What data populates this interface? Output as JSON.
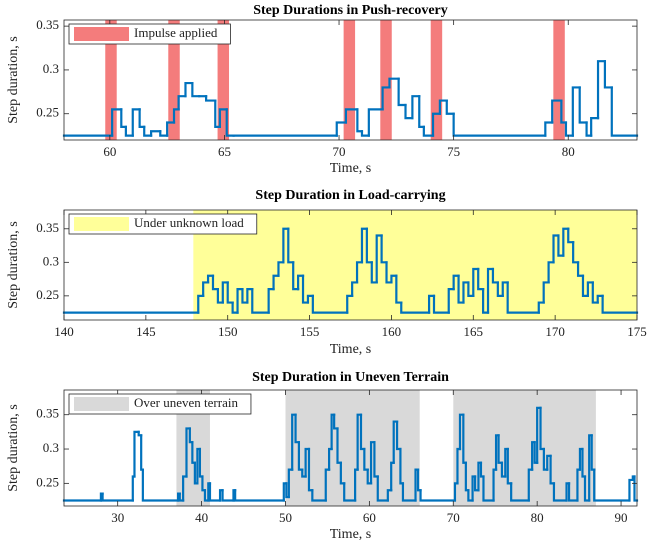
{
  "chart_data": [
    {
      "type": "line",
      "drawstyle": "steps-post",
      "title": "Step Durations in Push-recovery",
      "x_label": "Time, s",
      "y_label": "Step duration, s",
      "xlim": [
        58,
        83
      ],
      "ylim": [
        0.22,
        0.357
      ],
      "xticks": [
        60,
        65,
        70,
        75,
        80
      ],
      "yticks": [
        0.25,
        0.3,
        0.35
      ],
      "grid": false,
      "legend": "upper left",
      "regions": {
        "label": "Impulse applied",
        "color": "#f47c7c",
        "spans": [
          [
            59.8,
            60.3
          ],
          [
            62.55,
            63.05
          ],
          [
            64.7,
            65.2
          ],
          [
            70.2,
            70.7
          ],
          [
            71.8,
            72.3
          ],
          [
            74.0,
            74.5
          ],
          [
            79.35,
            79.85
          ]
        ]
      },
      "series": [
        {
          "color": "#0072bd",
          "x": [
            58,
            60.1,
            60.5,
            60.7,
            61.0,
            61.3,
            61.5,
            61.8,
            62.2,
            62.5,
            62.8,
            63.0,
            63.3,
            63.6,
            63.9,
            64.2,
            64.6,
            64.8,
            65.1,
            65.4,
            69.9,
            70.3,
            70.8,
            71.0,
            71.3,
            71.9,
            72.2,
            72.6,
            72.9,
            73.2,
            73.5,
            73.7,
            74.1,
            74.4,
            74.7,
            75.0,
            79.0,
            79.3,
            79.7,
            79.9,
            80.2,
            80.5,
            80.8,
            81.0,
            81.3,
            81.6,
            81.9
          ],
          "values": [
            0.225,
            0.255,
            0.235,
            0.225,
            0.255,
            0.235,
            0.225,
            0.23,
            0.225,
            0.24,
            0.255,
            0.27,
            0.285,
            0.27,
            0.27,
            0.265,
            0.235,
            0.255,
            0.225,
            0.225,
            0.24,
            0.255,
            0.23,
            0.225,
            0.255,
            0.28,
            0.29,
            0.26,
            0.245,
            0.27,
            0.235,
            0.225,
            0.25,
            0.265,
            0.25,
            0.225,
            0.24,
            0.265,
            0.24,
            0.225,
            0.28,
            0.24,
            0.225,
            0.245,
            0.31,
            0.28,
            0.225
          ]
        }
      ]
    },
    {
      "type": "line",
      "drawstyle": "steps-post",
      "title": "Step Duration in Load-carrying",
      "x_label": "Time, s",
      "y_label": "Step duration, s",
      "xlim": [
        140,
        175
      ],
      "ylim": [
        0.214,
        0.378
      ],
      "xticks": [
        140,
        145,
        150,
        155,
        160,
        165,
        170,
        175
      ],
      "yticks": [
        0.25,
        0.3,
        0.35
      ],
      "grid": false,
      "legend": "upper left",
      "regions": {
        "label": "Under unknown load",
        "color": "#ffff99",
        "spans": [
          [
            147.9,
            175
          ]
        ]
      },
      "series": [
        {
          "color": "#0072bd",
          "x": [
            140,
            148.2,
            148.5,
            148.8,
            149.1,
            149.4,
            149.7,
            150.0,
            150.3,
            150.6,
            150.9,
            151.2,
            151.5,
            152.5,
            152.8,
            153.1,
            153.4,
            153.7,
            154.0,
            154.3,
            154.6,
            154.9,
            155.2,
            157.3,
            157.6,
            157.9,
            158.2,
            158.5,
            158.8,
            159.1,
            159.4,
            159.7,
            160.0,
            160.3,
            160.6,
            162.3,
            162.6,
            163.5,
            163.8,
            164.1,
            164.4,
            164.7,
            165.0,
            165.3,
            165.6,
            165.9,
            166.2,
            166.5,
            166.8,
            167.1,
            169.0,
            169.3,
            169.6,
            169.9,
            170.2,
            170.5,
            170.8,
            171.1,
            171.4,
            171.7,
            172.0,
            172.3,
            172.6,
            172.9
          ],
          "values": [
            0.225,
            0.25,
            0.27,
            0.28,
            0.26,
            0.24,
            0.27,
            0.24,
            0.225,
            0.26,
            0.24,
            0.26,
            0.225,
            0.26,
            0.28,
            0.3,
            0.35,
            0.3,
            0.26,
            0.28,
            0.24,
            0.25,
            0.225,
            0.25,
            0.27,
            0.3,
            0.35,
            0.3,
            0.27,
            0.34,
            0.3,
            0.27,
            0.28,
            0.24,
            0.225,
            0.25,
            0.225,
            0.26,
            0.28,
            0.24,
            0.27,
            0.25,
            0.29,
            0.26,
            0.225,
            0.29,
            0.27,
            0.25,
            0.27,
            0.225,
            0.24,
            0.27,
            0.3,
            0.34,
            0.31,
            0.35,
            0.33,
            0.3,
            0.28,
            0.25,
            0.27,
            0.24,
            0.25,
            0.225
          ]
        }
      ]
    },
    {
      "type": "line",
      "drawstyle": "steps-post",
      "title": "Step Duration in Uneven Terrain",
      "x_label": "Time, s",
      "y_label": "Step duration, s",
      "xlim": [
        23.6,
        91.9
      ],
      "ylim": [
        0.217,
        0.386
      ],
      "xticks": [
        30,
        40,
        50,
        60,
        70,
        80,
        90
      ],
      "yticks": [
        0.25,
        0.3,
        0.35
      ],
      "grid": false,
      "legend": "upper left",
      "regions": {
        "label": "Over uneven terrain",
        "color": "#d9d9d9",
        "spans": [
          [
            37,
            41
          ],
          [
            50,
            66
          ],
          [
            70,
            87
          ]
        ]
      },
      "series": [
        {
          "color": "#0072bd",
          "x": [
            23.6,
            28.0,
            28.2,
            31.8,
            32.0,
            32.5,
            32.8,
            33.0,
            37.2,
            37.4,
            37.8,
            38.2,
            38.6,
            38.9,
            39.2,
            39.5,
            39.8,
            40.1,
            40.4,
            40.8,
            41.0,
            42.2,
            42.5,
            43.8,
            44.0,
            49.8,
            50.1,
            50.4,
            50.8,
            51.2,
            51.6,
            52.0,
            52.4,
            52.8,
            53.2,
            54.8,
            55.2,
            55.5,
            55.8,
            56.2,
            56.6,
            57.0,
            58.3,
            58.6,
            59.0,
            59.4,
            59.8,
            60.2,
            60.6,
            61.0,
            62.2,
            62.6,
            62.9,
            63.3,
            63.7,
            64.0,
            65.5,
            65.8,
            66.1,
            70.2,
            70.5,
            70.8,
            71.2,
            71.5,
            71.8,
            72.3,
            72.6,
            73.0,
            73.3,
            73.6,
            74.8,
            75.1,
            75.4,
            75.8,
            76.2,
            76.5,
            76.9,
            79.0,
            79.4,
            79.7,
            80.0,
            80.4,
            80.8,
            81.2,
            81.6,
            82.0,
            83.5,
            83.8,
            84.8,
            85.1,
            85.4,
            85.7,
            86.2,
            86.5,
            86.8,
            91.0,
            91.4,
            91.6
          ],
          "values": [
            0.225,
            0.235,
            0.225,
            0.26,
            0.325,
            0.32,
            0.27,
            0.225,
            0.235,
            0.225,
            0.26,
            0.33,
            0.31,
            0.28,
            0.25,
            0.3,
            0.26,
            0.24,
            0.225,
            0.25,
            0.225,
            0.24,
            0.225,
            0.24,
            0.225,
            0.25,
            0.23,
            0.27,
            0.35,
            0.31,
            0.27,
            0.26,
            0.3,
            0.24,
            0.225,
            0.27,
            0.3,
            0.35,
            0.33,
            0.28,
            0.25,
            0.225,
            0.27,
            0.35,
            0.3,
            0.27,
            0.25,
            0.31,
            0.26,
            0.225,
            0.24,
            0.28,
            0.34,
            0.3,
            0.25,
            0.225,
            0.27,
            0.24,
            0.225,
            0.25,
            0.3,
            0.35,
            0.28,
            0.24,
            0.225,
            0.26,
            0.24,
            0.28,
            0.26,
            0.225,
            0.27,
            0.32,
            0.28,
            0.26,
            0.3,
            0.25,
            0.225,
            0.27,
            0.31,
            0.28,
            0.36,
            0.3,
            0.27,
            0.29,
            0.25,
            0.225,
            0.25,
            0.225,
            0.27,
            0.3,
            0.26,
            0.225,
            0.32,
            0.27,
            0.225,
            0.255,
            0.26,
            0.225
          ]
        }
      ]
    }
  ]
}
